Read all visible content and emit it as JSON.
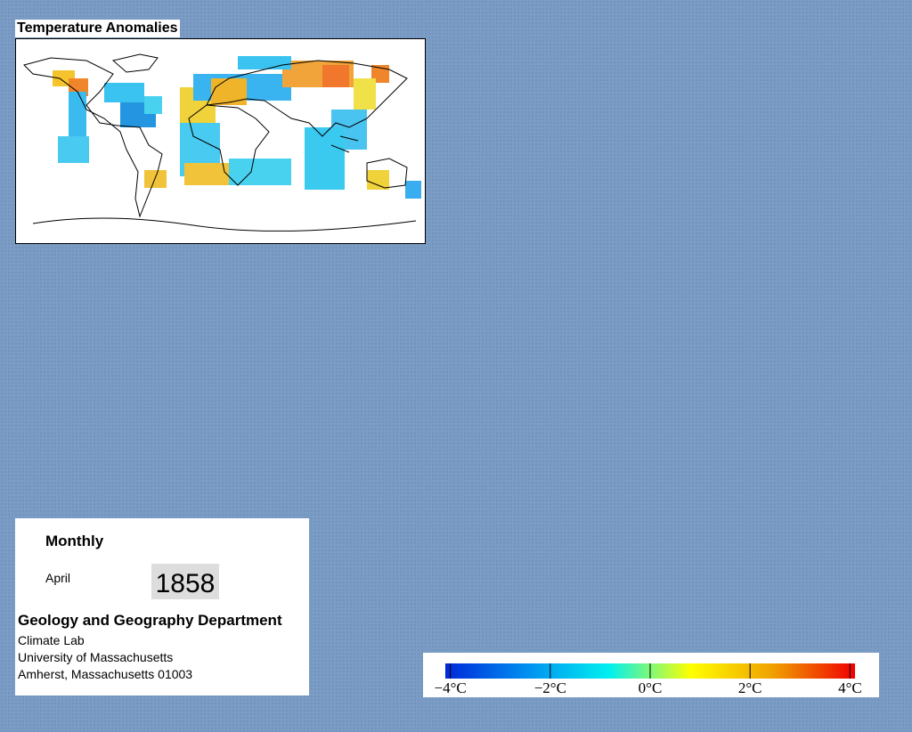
{
  "map": {
    "title": "Temperature Anomalies"
  },
  "info": {
    "frequency": "Monthly",
    "month": "April",
    "year": "1858",
    "department": "Geology and Geography Department",
    "lines": [
      "Climate Lab",
      "University of Massachusetts",
      "Amherst, Massachusetts 01003"
    ]
  },
  "colorbar": {
    "lim": [
      -4.1,
      4.1
    ],
    "ticks": [
      {
        "value": -4,
        "label": "−4°C"
      },
      {
        "value": -2,
        "label": "−2°C"
      },
      {
        "value": 0,
        "label": "0°C"
      },
      {
        "value": 2,
        "label": "2°C"
      },
      {
        "value": 4,
        "label": "4°C"
      }
    ],
    "colors": [
      "#0028d8",
      "#0090f0",
      "#00f0f0",
      "#ffff00",
      "#f0a000",
      "#f00000"
    ]
  }
}
